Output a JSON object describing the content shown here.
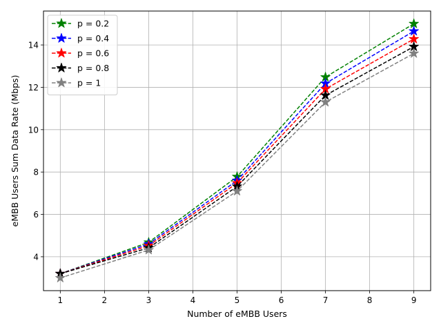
{
  "chart_data": {
    "type": "line",
    "title": "",
    "xlabel": "Number of eMBB Users",
    "ylabel": "eMBB Users Sum Data Rate (Mbps)",
    "x": [
      1,
      3,
      5,
      7,
      9
    ],
    "xlim": [
      0.62,
      9.38
    ],
    "ylim": [
      2.4,
      15.6
    ],
    "xticks": [
      1,
      2,
      3,
      4,
      5,
      6,
      7,
      8,
      9
    ],
    "yticks": [
      4,
      6,
      8,
      10,
      12,
      14
    ],
    "grid": true,
    "legend_position": "top-left",
    "line_style": "dashed",
    "marker": "star",
    "series": [
      {
        "name": "p = 0.2",
        "color": "#008000",
        "values": [
          3.2,
          4.68,
          7.78,
          12.48,
          15.0
        ]
      },
      {
        "name": "p = 0.4",
        "color": "#0000ff",
        "values": [
          3.2,
          4.6,
          7.6,
          12.18,
          14.65
        ]
      },
      {
        "name": "p = 0.6",
        "color": "#ff0000",
        "values": [
          3.2,
          4.52,
          7.48,
          11.92,
          14.28
        ]
      },
      {
        "name": "p = 0.8",
        "color": "#000000",
        "values": [
          3.2,
          4.42,
          7.32,
          11.62,
          13.92
        ]
      },
      {
        "name": "p = 1",
        "color": "#808080",
        "values": [
          3.0,
          4.32,
          7.1,
          11.3,
          13.6
        ]
      }
    ]
  }
}
